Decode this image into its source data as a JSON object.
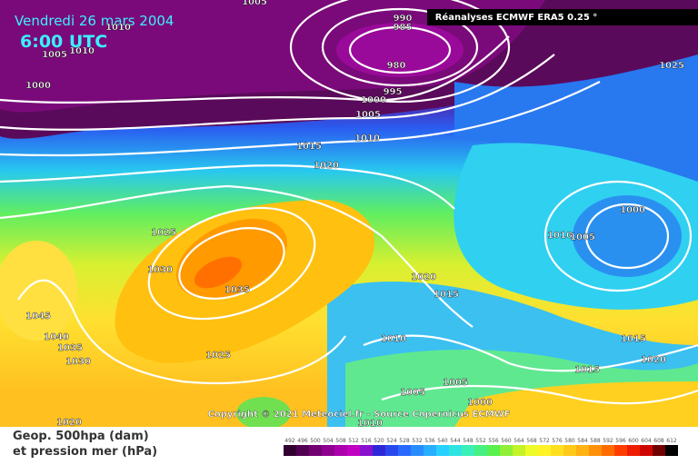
{
  "header": {
    "date": "Vendredi 26 mars 2004",
    "time": "6:00 UTC",
    "source": "Réanalyses ECMWF ERA5 0.25 °"
  },
  "copyright": "Copyright © 2021 Meteociel.fr - Source Copernicus ECMWF",
  "legend": {
    "line1": "Geop. 500hpa (dam)",
    "line2": "et pression mer (hPa)",
    "scale": [
      492,
      496,
      500,
      504,
      508,
      512,
      516,
      520,
      524,
      528,
      532,
      536,
      540,
      544,
      548,
      552,
      556,
      560,
      564,
      568,
      572,
      576,
      580,
      584,
      588,
      592,
      596,
      600,
      604,
      608,
      612
    ]
  },
  "isobar_labels": [
    "1005",
    "1010",
    "1005",
    "1010",
    "1000",
    "990",
    "985",
    "980",
    "995",
    "1000",
    "1005",
    "1010",
    "1015",
    "1020",
    "1025",
    "1025",
    "1030",
    "1035",
    "1045",
    "1040",
    "1035",
    "1030",
    "1025",
    "1020",
    "1015",
    "1010",
    "1000",
    "1010",
    "1005",
    "1015",
    "1015",
    "1020",
    "1005",
    "1005",
    "1000",
    "1010",
    "1020"
  ]
}
